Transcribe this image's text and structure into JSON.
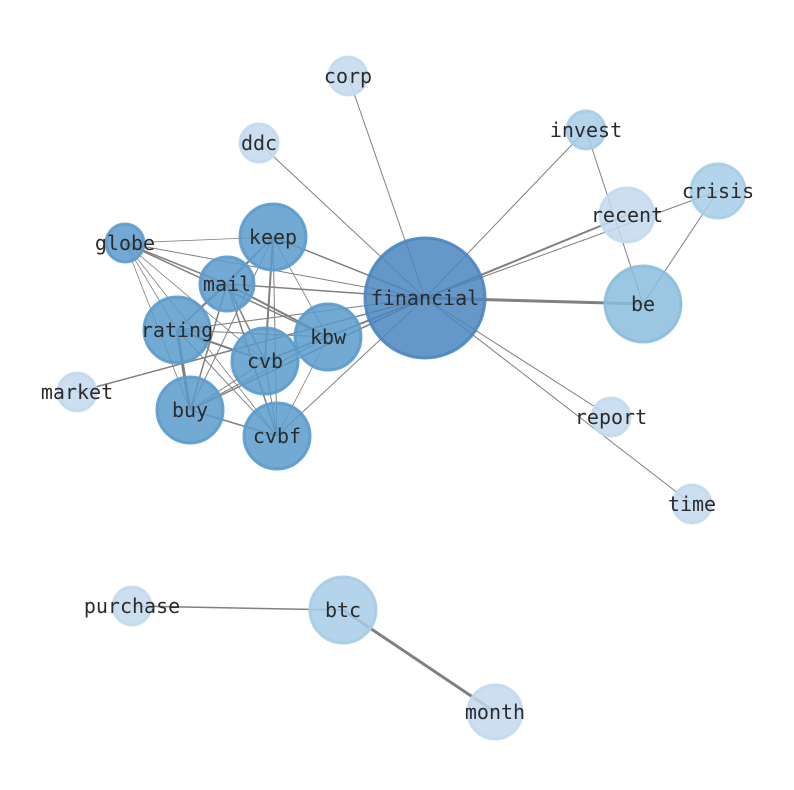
{
  "graph": {
    "type": "network",
    "edge_color": "#808080",
    "node_colors": {
      "hub": "#4a86c0",
      "high": "#5b9bcc",
      "mid": "#89bddd",
      "low": "#a6cce6",
      "min": "#c3d9ee"
    },
    "nodes": [
      {
        "id": "financial",
        "label": "financial",
        "level": "hub"
      },
      {
        "id": "be",
        "label": "be",
        "level": "mid"
      },
      {
        "id": "kbw",
        "label": "kbw",
        "level": "high"
      },
      {
        "id": "keep",
        "label": "keep",
        "level": "high"
      },
      {
        "id": "cvb",
        "label": "cvb",
        "level": "high"
      },
      {
        "id": "cvbf",
        "label": "cvbf",
        "level": "high"
      },
      {
        "id": "buy",
        "label": "buy",
        "level": "high"
      },
      {
        "id": "rating",
        "label": "rating",
        "level": "high"
      },
      {
        "id": "mail",
        "label": "mail",
        "level": "high"
      },
      {
        "id": "globe",
        "label": "globe",
        "level": "high"
      },
      {
        "id": "crisis",
        "label": "crisis",
        "level": "low"
      },
      {
        "id": "recent",
        "label": "recent",
        "level": "min"
      },
      {
        "id": "invest",
        "label": "invest",
        "level": "low"
      },
      {
        "id": "corp",
        "label": "corp",
        "level": "min"
      },
      {
        "id": "ddc",
        "label": "ddc",
        "level": "min"
      },
      {
        "id": "market",
        "label": "market",
        "level": "min"
      },
      {
        "id": "report",
        "label": "report",
        "level": "min"
      },
      {
        "id": "time",
        "label": "time",
        "level": "min"
      },
      {
        "id": "btc",
        "label": "btc",
        "level": "low"
      },
      {
        "id": "purchase",
        "label": "purchase",
        "level": "min"
      },
      {
        "id": "month",
        "label": "month",
        "level": "min"
      }
    ],
    "edges": [
      [
        "financial",
        "corp",
        1
      ],
      [
        "financial",
        "ddc",
        1
      ],
      [
        "financial",
        "invest",
        1
      ],
      [
        "financial",
        "recent",
        2
      ],
      [
        "financial",
        "crisis",
        1
      ],
      [
        "financial",
        "be",
        3
      ],
      [
        "financial",
        "report",
        1
      ],
      [
        "financial",
        "time",
        1
      ],
      [
        "financial",
        "keep",
        1.5
      ],
      [
        "financial",
        "mail",
        1.5
      ],
      [
        "financial",
        "kbw",
        1.5
      ],
      [
        "financial",
        "cvb",
        1.5
      ],
      [
        "financial",
        "cvbf",
        1
      ],
      [
        "financial",
        "buy",
        1.5
      ],
      [
        "financial",
        "rating",
        1
      ],
      [
        "financial",
        "globe",
        1
      ],
      [
        "financial",
        "market",
        1.5
      ],
      [
        "invest",
        "be",
        1
      ],
      [
        "crisis",
        "be",
        1
      ],
      [
        "globe",
        "keep",
        0.8
      ],
      [
        "globe",
        "mail",
        1.5
      ],
      [
        "globe",
        "rating",
        0.8
      ],
      [
        "globe",
        "buy",
        0.8
      ],
      [
        "globe",
        "cvb",
        0.8
      ],
      [
        "globe",
        "cvbf",
        0.8
      ],
      [
        "globe",
        "kbw",
        1.5
      ],
      [
        "keep",
        "mail",
        1.5
      ],
      [
        "keep",
        "rating",
        1
      ],
      [
        "keep",
        "cvb",
        2
      ],
      [
        "keep",
        "cvbf",
        1
      ],
      [
        "keep",
        "buy",
        1
      ],
      [
        "keep",
        "kbw",
        0.8
      ],
      [
        "mail",
        "rating",
        1.5
      ],
      [
        "mail",
        "buy",
        1.5
      ],
      [
        "mail",
        "cvb",
        1.5
      ],
      [
        "mail",
        "cvbf",
        1.5
      ],
      [
        "mail",
        "kbw",
        2
      ],
      [
        "rating",
        "buy",
        3
      ],
      [
        "rating",
        "cvb",
        2
      ],
      [
        "rating",
        "cvbf",
        1
      ],
      [
        "rating",
        "kbw",
        1
      ],
      [
        "buy",
        "cvbf",
        1.5
      ],
      [
        "buy",
        "cvb",
        1
      ],
      [
        "buy",
        "kbw",
        1
      ],
      [
        "cvb",
        "cvbf",
        1
      ],
      [
        "cvb",
        "kbw",
        1
      ],
      [
        "cvbf",
        "kbw",
        0.8
      ],
      [
        "btc",
        "purchase",
        1.5
      ],
      [
        "btc",
        "month",
        3
      ]
    ]
  }
}
